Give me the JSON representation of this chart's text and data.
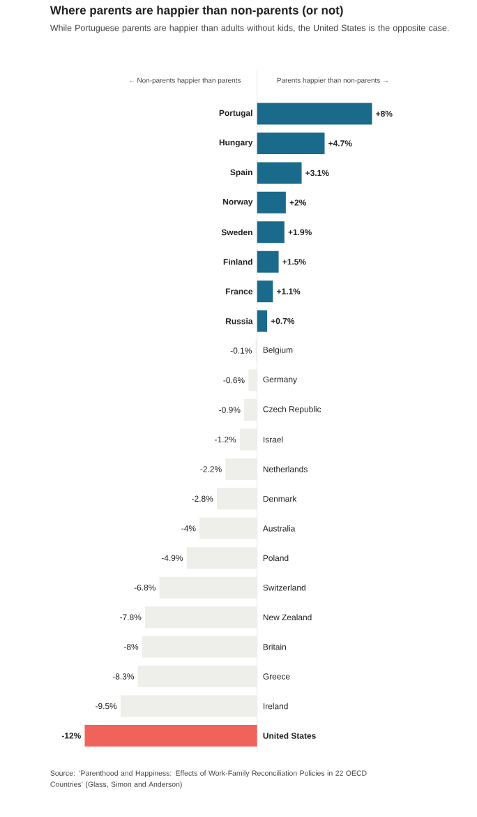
{
  "chart_data": {
    "type": "bar",
    "orientation": "horizontal",
    "title": "Where parents are happier than non-parents (or not)",
    "subtitle": "While Portuguese parents are happier than adults without kids, the United States is the opposite case.",
    "categories": [
      "Portugal",
      "Hungary",
      "Spain",
      "Norway",
      "Sweden",
      "Finland",
      "France",
      "Russia",
      "Belgium",
      "Germany",
      "Czech Republic",
      "Israel",
      "Netherlands",
      "Denmark",
      "Australia",
      "Poland",
      "Switzerland",
      "New Zealand",
      "Britain",
      "Greece",
      "Ireland",
      "United States"
    ],
    "values": [
      8,
      4.7,
      3.1,
      2,
      1.9,
      1.5,
      1.1,
      0.7,
      -0.1,
      -0.6,
      -0.9,
      -1.2,
      -2.2,
      -2.8,
      -4,
      -4.9,
      -6.8,
      -7.8,
      -8,
      -8.3,
      -9.5,
      -12
    ],
    "value_labels": [
      "+8%",
      "+4.7%",
      "+3.1%",
      "+2%",
      "+1.9%",
      "+1.5%",
      "+1.1%",
      "+0.7%",
      "-0.1%",
      "-0.6%",
      "-0.9%",
      "-1.2%",
      "-2.2%",
      "-2.8%",
      "-4%",
      "-4.9%",
      "-6.8%",
      "-7.8%",
      "-8%",
      "-8.3%",
      "-9.5%",
      "-12%"
    ],
    "colors": [
      "#1a6a8c",
      "#1a6a8c",
      "#1a6a8c",
      "#1a6a8c",
      "#1a6a8c",
      "#1a6a8c",
      "#1a6a8c",
      "#1a6a8c",
      "#eeeeea",
      "#eeeeea",
      "#eeeeea",
      "#eeeeea",
      "#eeeeea",
      "#eeeeea",
      "#eeeeea",
      "#eeeeea",
      "#eeeeea",
      "#eeeeea",
      "#eeeeea",
      "#eeeeea",
      "#eeeeea",
      "#f0635a"
    ],
    "annotations": [
      "← Non-parents happier than parents",
      "Parents happier than non-parents →",
      "Source: ‘Parenthood and Happiness: Effects of Work-Family Reconciliation Policies in 22 OECD Countries’ (Glass, Simon and Anderson)"
    ]
  }
}
